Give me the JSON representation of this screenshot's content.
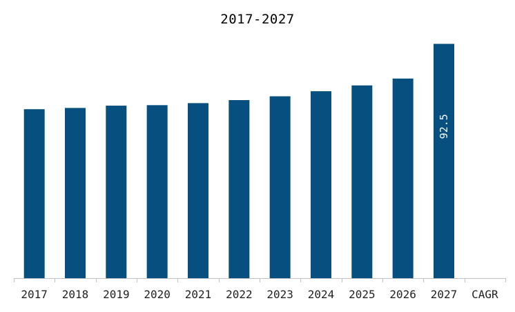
{
  "chart_data": {
    "type": "bar",
    "title": "2017-2027",
    "categories": [
      "2017",
      "2018",
      "2019",
      "2020",
      "2021",
      "2022",
      "2023",
      "2024",
      "2025",
      "2026",
      "2027",
      "CAGR"
    ],
    "values": [
      66.7,
      67.2,
      68.1,
      68.3,
      69.1,
      70.3,
      71.8,
      73.8,
      76.1,
      78.8,
      92.5,
      null
    ],
    "data_labels": [
      null,
      null,
      null,
      null,
      null,
      null,
      null,
      null,
      null,
      null,
      "92.5",
      null
    ],
    "xlabel": "",
    "ylabel": "",
    "ylim": [
      0,
      100
    ],
    "grid": false,
    "colors": {
      "bar": "#064f7e",
      "axis": "#bfbfbf",
      "label_on_bar": "#ffffff",
      "tick_text": "#222222"
    }
  }
}
